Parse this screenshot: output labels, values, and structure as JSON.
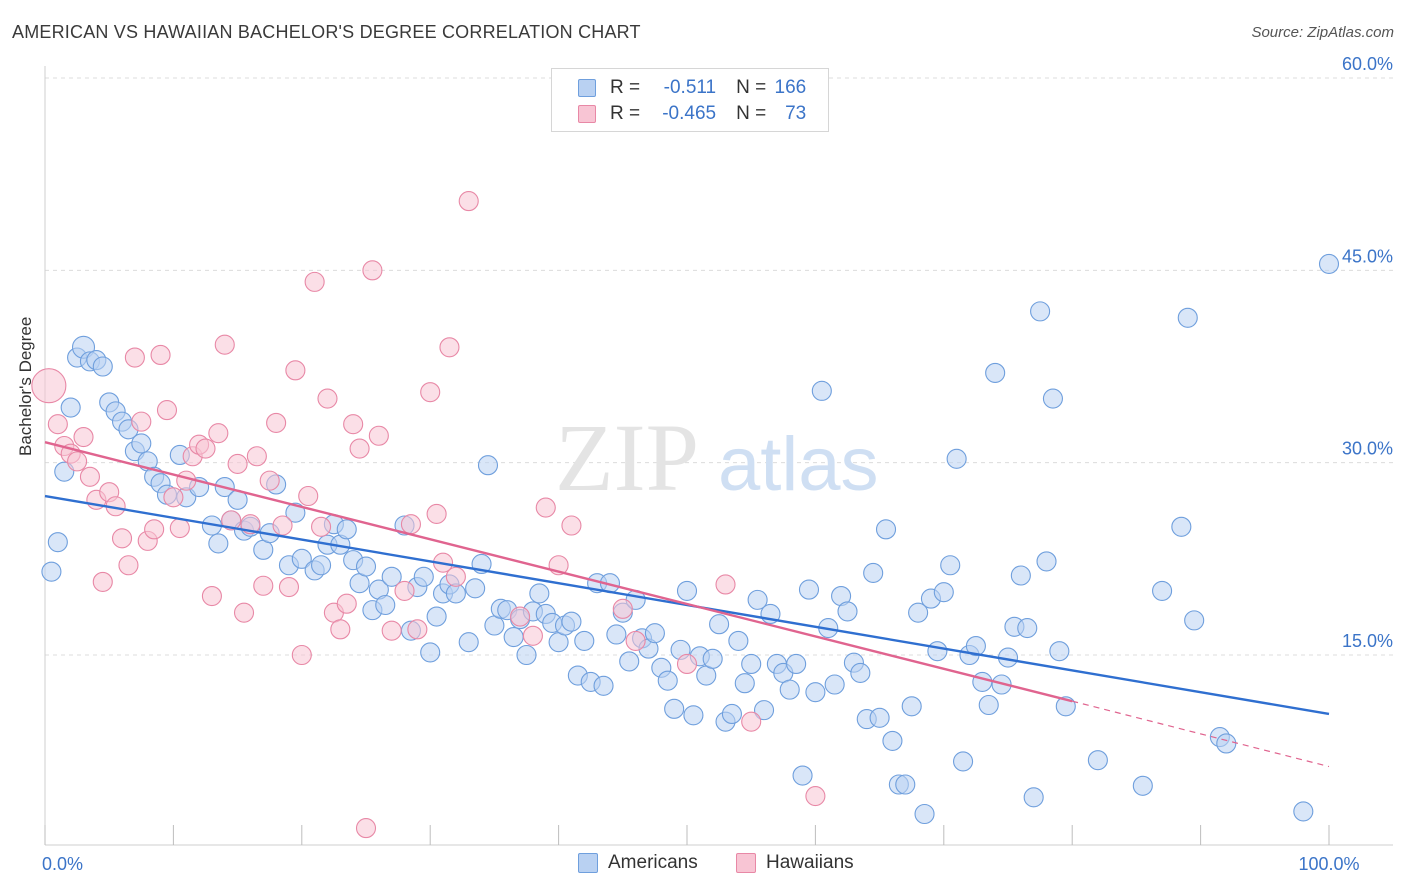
{
  "header": {
    "title": "AMERICAN VS HAWAIIAN BACHELOR'S DEGREE CORRELATION CHART",
    "source": "Source: ZipAtlas.com"
  },
  "watermark": {
    "zip": "ZIP",
    "atlas": "atlas"
  },
  "colors": {
    "blue_fill": "#b9d1f2",
    "blue_stroke": "#6f9fdd",
    "blue_line": "#2f6fd0",
    "pink_fill": "#f8c5d4",
    "pink_stroke": "#e888a6",
    "pink_line": "#e0648f",
    "axis_label": "#3b74c8",
    "grid": "#dcdcdc"
  },
  "legend": {
    "rows": [
      {
        "r_label": "R =",
        "r_value": "-0.511",
        "n_label": "N =",
        "n_value": "166"
      },
      {
        "r_label": "R =",
        "r_value": "-0.465",
        "n_label": "N =",
        "n_value": "73"
      }
    ]
  },
  "bottom_legend": {
    "americans": "Americans",
    "hawaiians": "Hawaiians"
  },
  "chart_data": {
    "type": "scatter",
    "title": "AMERICAN VS HAWAIIAN BACHELOR'S DEGREE CORRELATION CHART",
    "xlabel": "",
    "ylabel": "Bachelor's Degree",
    "xlim": [
      0,
      100
    ],
    "ylim": [
      0,
      62
    ],
    "x_tick_labels": [
      {
        "value": 0,
        "label": "0.0%"
      },
      {
        "value": 100,
        "label": "100.0%"
      }
    ],
    "y_tick_labels": [
      {
        "value": 15,
        "label": "15.0%"
      },
      {
        "value": 30,
        "label": "30.0%"
      },
      {
        "value": 45,
        "label": "45.0%"
      },
      {
        "value": 60,
        "label": "60.0%"
      }
    ],
    "x_minor_ticks": [
      0,
      10,
      20,
      30,
      40,
      50,
      60,
      70,
      80,
      90,
      100
    ],
    "grid": true,
    "legend_position": "bottom-center",
    "series": [
      {
        "name": "Americans",
        "r": -0.511,
        "n": 166,
        "trend": {
          "x": [
            0,
            100
          ],
          "y": [
            27.4,
            10.4
          ]
        },
        "points": [
          [
            0.5,
            21.5
          ],
          [
            1,
            23.8
          ],
          [
            1.5,
            29.3
          ],
          [
            2,
            34.3
          ],
          [
            2.5,
            38.2
          ],
          [
            3,
            39.0
          ],
          [
            3.5,
            37.9
          ],
          [
            4,
            38.0
          ],
          [
            4.5,
            37.5
          ],
          [
            5,
            34.7
          ],
          [
            5.5,
            34.0
          ],
          [
            6,
            33.2
          ],
          [
            6.5,
            32.6
          ],
          [
            7,
            30.9
          ],
          [
            7.5,
            31.5
          ],
          [
            8,
            30.1
          ],
          [
            8.5,
            28.9
          ],
          [
            9,
            28.4
          ],
          [
            9.5,
            27.5
          ],
          [
            10.5,
            30.6
          ],
          [
            11,
            27.3
          ],
          [
            12,
            28.1
          ],
          [
            13,
            25.1
          ],
          [
            13.5,
            23.7
          ],
          [
            14,
            28.1
          ],
          [
            14.5,
            25.5
          ],
          [
            15,
            27.1
          ],
          [
            15.5,
            24.7
          ],
          [
            16,
            25.0
          ],
          [
            17,
            23.2
          ],
          [
            17.5,
            24.5
          ],
          [
            18,
            28.3
          ],
          [
            19,
            22.0
          ],
          [
            19.5,
            26.1
          ],
          [
            20,
            22.5
          ],
          [
            21,
            21.6
          ],
          [
            21.5,
            22.0
          ],
          [
            22,
            23.6
          ],
          [
            22.5,
            25.2
          ],
          [
            23,
            23.6
          ],
          [
            23.5,
            24.8
          ],
          [
            24,
            22.4
          ],
          [
            24.5,
            20.6
          ],
          [
            25,
            21.9
          ],
          [
            25.5,
            18.5
          ],
          [
            26,
            20.1
          ],
          [
            26.5,
            18.9
          ],
          [
            27,
            21.1
          ],
          [
            28,
            25.1
          ],
          [
            28.5,
            16.9
          ],
          [
            29,
            20.3
          ],
          [
            29.5,
            21.1
          ],
          [
            30,
            15.2
          ],
          [
            30.5,
            18.0
          ],
          [
            31,
            19.8
          ],
          [
            31.5,
            20.5
          ],
          [
            32,
            19.8
          ],
          [
            33,
            16.0
          ],
          [
            33.5,
            20.2
          ],
          [
            34,
            22.1
          ],
          [
            34.5,
            29.8
          ],
          [
            35,
            17.3
          ],
          [
            35.5,
            18.6
          ],
          [
            36,
            18.5
          ],
          [
            36.5,
            16.4
          ],
          [
            37,
            17.8
          ],
          [
            37.5,
            15.0
          ],
          [
            38,
            18.4
          ],
          [
            38.5,
            19.8
          ],
          [
            39,
            18.2
          ],
          [
            39.5,
            17.5
          ],
          [
            40,
            16.0
          ],
          [
            40.5,
            17.3
          ],
          [
            41,
            17.6
          ],
          [
            41.5,
            13.4
          ],
          [
            42,
            16.1
          ],
          [
            42.5,
            12.9
          ],
          [
            43,
            20.6
          ],
          [
            43.5,
            12.6
          ],
          [
            44,
            20.6
          ],
          [
            44.5,
            16.6
          ],
          [
            45,
            18.3
          ],
          [
            45.5,
            14.5
          ],
          [
            46,
            19.3
          ],
          [
            46.5,
            16.3
          ],
          [
            47,
            15.5
          ],
          [
            47.5,
            16.7
          ],
          [
            48,
            14.0
          ],
          [
            48.5,
            13.0
          ],
          [
            49,
            10.8
          ],
          [
            49.5,
            15.4
          ],
          [
            50,
            20.0
          ],
          [
            50.5,
            10.3
          ],
          [
            51,
            14.9
          ],
          [
            51.5,
            13.4
          ],
          [
            52,
            14.7
          ],
          [
            52.5,
            17.4
          ],
          [
            53,
            9.8
          ],
          [
            53.5,
            10.4
          ],
          [
            54,
            16.1
          ],
          [
            54.5,
            12.8
          ],
          [
            55,
            14.3
          ],
          [
            55.5,
            19.3
          ],
          [
            56,
            10.7
          ],
          [
            56.5,
            18.2
          ],
          [
            57,
            14.3
          ],
          [
            57.5,
            13.6
          ],
          [
            58,
            12.3
          ],
          [
            58.5,
            14.3
          ],
          [
            59,
            5.6
          ],
          [
            59.5,
            20.1
          ],
          [
            60,
            12.1
          ],
          [
            60.5,
            35.6
          ],
          [
            61,
            17.1
          ],
          [
            61.5,
            12.7
          ],
          [
            62,
            19.6
          ],
          [
            62.5,
            18.4
          ],
          [
            63,
            14.4
          ],
          [
            63.5,
            13.6
          ],
          [
            64,
            10.0
          ],
          [
            64.5,
            21.4
          ],
          [
            65,
            10.1
          ],
          [
            65.5,
            24.8
          ],
          [
            66,
            8.3
          ],
          [
            66.5,
            4.9
          ],
          [
            67,
            4.9
          ],
          [
            67.5,
            11.0
          ],
          [
            68,
            18.3
          ],
          [
            68.5,
            2.6
          ],
          [
            69,
            19.4
          ],
          [
            69.5,
            15.3
          ],
          [
            70,
            19.9
          ],
          [
            70.5,
            22.0
          ],
          [
            71,
            30.3
          ],
          [
            71.5,
            6.7
          ],
          [
            72,
            15.0
          ],
          [
            72.5,
            15.7
          ],
          [
            73,
            12.9
          ],
          [
            73.5,
            11.1
          ],
          [
            74,
            37.0
          ],
          [
            74.5,
            12.7
          ],
          [
            75,
            14.8
          ],
          [
            75.5,
            17.2
          ],
          [
            76,
            21.2
          ],
          [
            76.5,
            17.1
          ],
          [
            77,
            3.9
          ],
          [
            77.5,
            41.8
          ],
          [
            78,
            22.3
          ],
          [
            78.5,
            35.0
          ],
          [
            79,
            15.3
          ],
          [
            79.5,
            11.0
          ],
          [
            82,
            6.8
          ],
          [
            85.5,
            4.8
          ],
          [
            87,
            20.0
          ],
          [
            88.5,
            25.0
          ],
          [
            89,
            41.3
          ],
          [
            89.5,
            17.7
          ],
          [
            91.5,
            8.6
          ],
          [
            92,
            8.1
          ],
          [
            98,
            2.8
          ],
          [
            100,
            45.5
          ]
        ]
      },
      {
        "name": "Hawaiians",
        "r": -0.465,
        "n": 73,
        "trend": {
          "x": [
            0,
            80
          ],
          "y": [
            31.6,
            11.4
          ]
        },
        "trend_dashed": {
          "x": [
            80,
            100
          ],
          "y": [
            11.4,
            6.3
          ]
        },
        "points": [
          [
            0.3,
            36.0
          ],
          [
            1,
            33.0
          ],
          [
            1.5,
            31.3
          ],
          [
            2,
            30.7
          ],
          [
            2.5,
            30.1
          ],
          [
            3,
            32.0
          ],
          [
            3.5,
            28.9
          ],
          [
            4,
            27.1
          ],
          [
            4.5,
            20.7
          ],
          [
            5,
            27.7
          ],
          [
            5.5,
            26.6
          ],
          [
            6,
            24.1
          ],
          [
            6.5,
            22.0
          ],
          [
            7,
            38.2
          ],
          [
            7.5,
            33.2
          ],
          [
            8,
            23.9
          ],
          [
            8.5,
            24.8
          ],
          [
            9,
            38.4
          ],
          [
            9.5,
            34.1
          ],
          [
            10,
            27.3
          ],
          [
            10.5,
            24.9
          ],
          [
            11,
            28.6
          ],
          [
            11.5,
            30.5
          ],
          [
            12,
            31.4
          ],
          [
            12.5,
            31.1
          ],
          [
            13,
            19.6
          ],
          [
            13.5,
            32.3
          ],
          [
            14,
            39.2
          ],
          [
            14.5,
            25.5
          ],
          [
            15,
            29.9
          ],
          [
            15.5,
            18.3
          ],
          [
            16,
            25.2
          ],
          [
            16.5,
            30.5
          ],
          [
            17,
            20.4
          ],
          [
            17.5,
            28.6
          ],
          [
            18,
            33.1
          ],
          [
            18.5,
            25.1
          ],
          [
            19,
            20.3
          ],
          [
            19.5,
            37.2
          ],
          [
            20,
            15.0
          ],
          [
            20.5,
            27.4
          ],
          [
            21,
            44.1
          ],
          [
            21.5,
            25.0
          ],
          [
            22,
            35.0
          ],
          [
            22.5,
            18.3
          ],
          [
            23,
            17.0
          ],
          [
            23.5,
            19.0
          ],
          [
            24,
            33.0
          ],
          [
            24.5,
            31.1
          ],
          [
            25,
            1.5
          ],
          [
            25.5,
            45.0
          ],
          [
            26,
            32.1
          ],
          [
            27,
            16.9
          ],
          [
            28,
            20.0
          ],
          [
            28.5,
            25.2
          ],
          [
            29,
            17.0
          ],
          [
            30,
            35.5
          ],
          [
            30.5,
            26.0
          ],
          [
            31,
            22.2
          ],
          [
            31.5,
            39.0
          ],
          [
            32,
            21.1
          ],
          [
            33,
            50.4
          ],
          [
            37,
            18.0
          ],
          [
            38,
            16.5
          ],
          [
            39,
            26.5
          ],
          [
            40,
            22.0
          ],
          [
            41,
            25.1
          ],
          [
            45,
            18.6
          ],
          [
            46,
            16.1
          ],
          [
            50,
            14.3
          ],
          [
            53,
            20.5
          ],
          [
            55,
            9.8
          ],
          [
            60,
            4.0
          ]
        ]
      }
    ]
  }
}
